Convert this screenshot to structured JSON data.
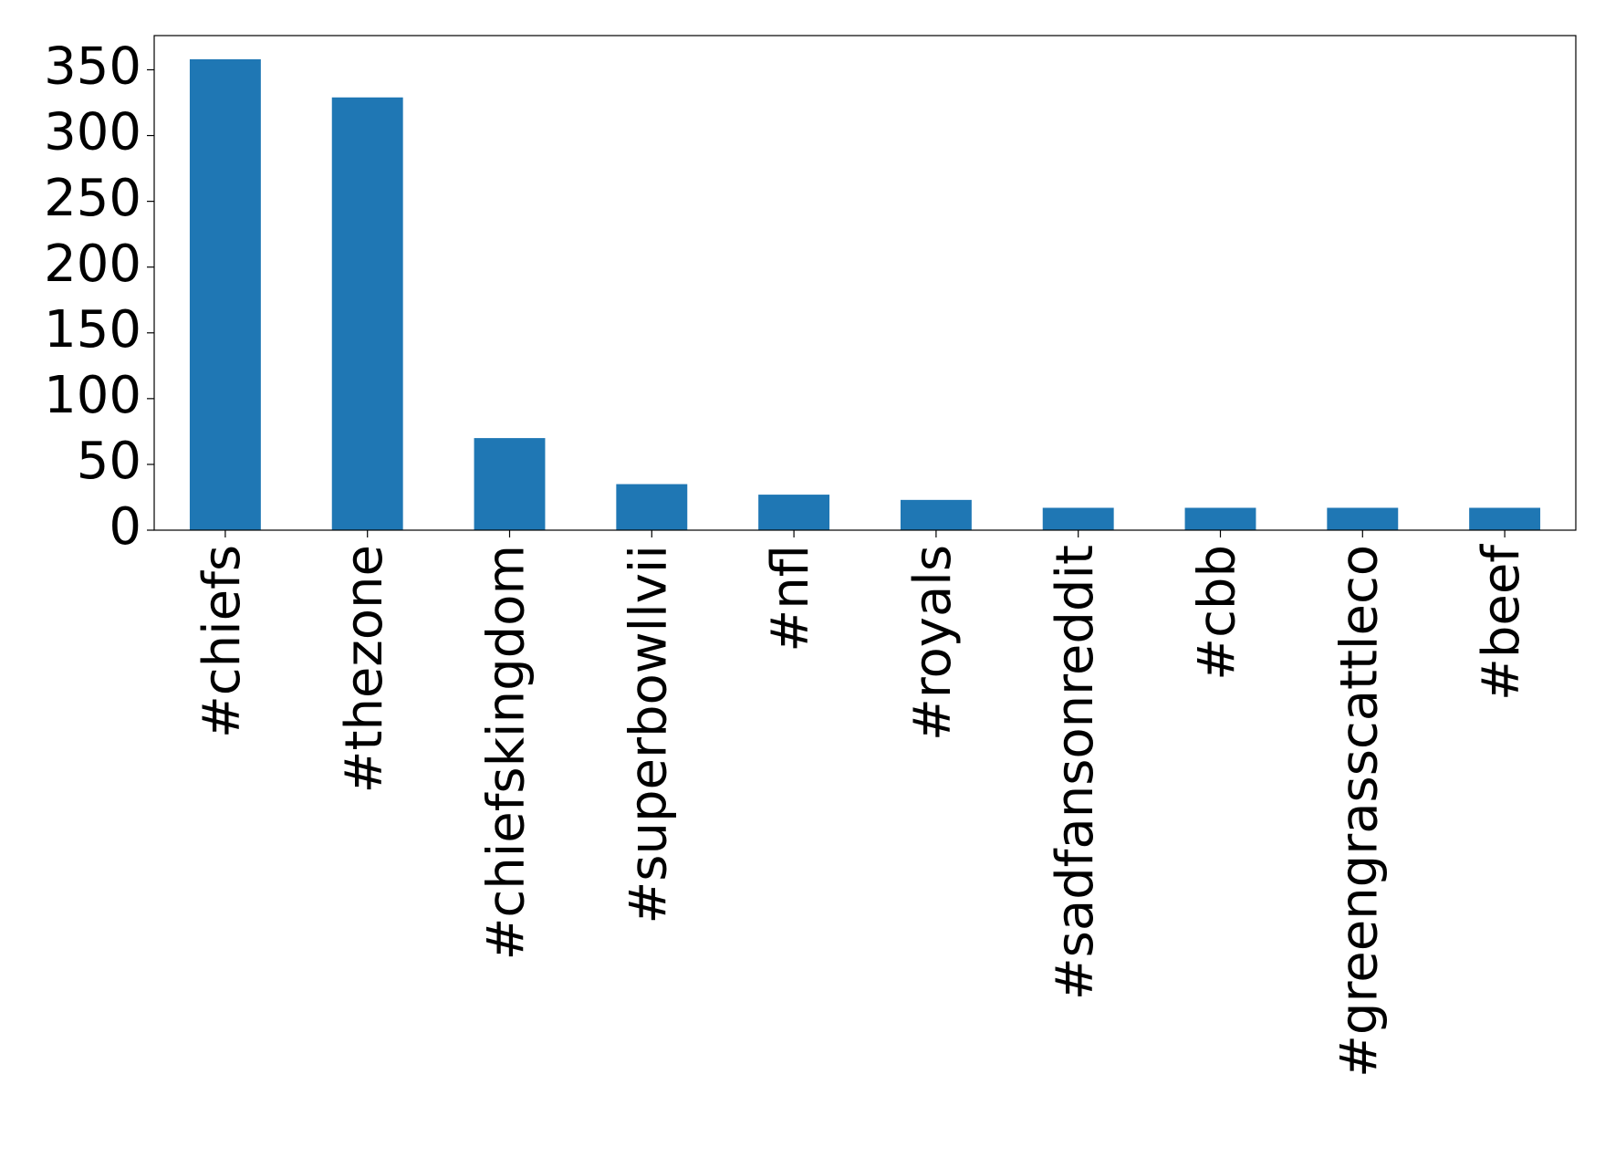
{
  "chart_data": {
    "type": "bar",
    "categories": [
      "#chiefs",
      "#thezone",
      "#chiefskingdom",
      "#superbowllvii",
      "#nfl",
      "#royals",
      "#sadfansonreddit",
      "#cbb",
      "#greengrasscattleco",
      "#beef"
    ],
    "values": [
      358,
      329,
      70,
      35,
      27,
      23,
      17,
      17,
      17,
      17
    ],
    "color": "#1f77b4",
    "ylim": [
      0,
      376
    ],
    "yticks": [
      0,
      50,
      100,
      150,
      200,
      250,
      300,
      350
    ],
    "grid": false
  }
}
